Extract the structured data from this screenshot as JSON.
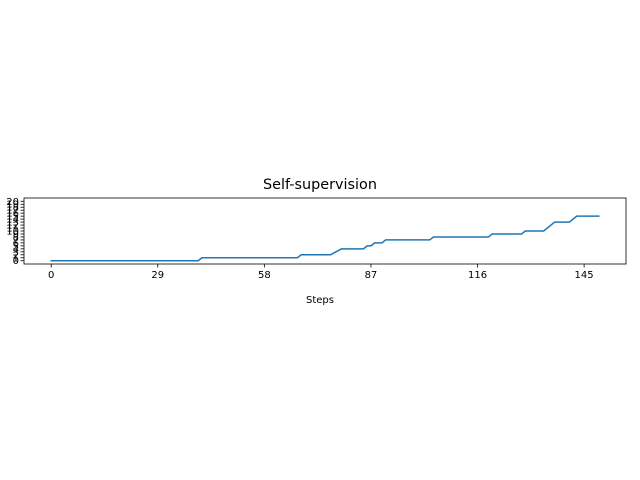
{
  "chart_data": {
    "type": "line",
    "title": "Self-supervision",
    "xlabel": "Steps",
    "ylabel": "",
    "xlim": [
      -7.4,
      156.4
    ],
    "ylim": [
      -1.1,
      21.1
    ],
    "x_ticks": [
      0,
      29,
      58,
      87,
      116,
      145
    ],
    "y_ticks": [
      0,
      1,
      2,
      3,
      4,
      5,
      6,
      7,
      8,
      9,
      10,
      11,
      12,
      13,
      14,
      15,
      16,
      17,
      18,
      19,
      20
    ],
    "grid": false,
    "series": [
      {
        "color": "#1f77b4",
        "points": [
          [
            0,
            0
          ],
          [
            40,
            0
          ],
          [
            41,
            1
          ],
          [
            67,
            1
          ],
          [
            68,
            2
          ],
          [
            76,
            2
          ],
          [
            79,
            4
          ],
          [
            85,
            4
          ],
          [
            86,
            5
          ],
          [
            87,
            5
          ],
          [
            88,
            6
          ],
          [
            90,
            6
          ],
          [
            91,
            7
          ],
          [
            103,
            7
          ],
          [
            104,
            8
          ],
          [
            119,
            8
          ],
          [
            120,
            9
          ],
          [
            128,
            9
          ],
          [
            129,
            10
          ],
          [
            134,
            10
          ],
          [
            137,
            13
          ],
          [
            141,
            13
          ],
          [
            143,
            15
          ],
          [
            149,
            15
          ]
        ]
      }
    ]
  }
}
